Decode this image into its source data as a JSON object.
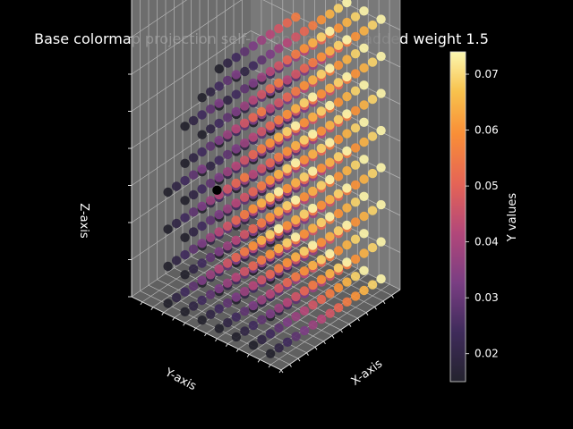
{
  "chart_data": {
    "type": "scatter",
    "projection": "3d",
    "title": "Base colormap projection self-looped method added weight 1.5",
    "xlabel": "X-axis",
    "ylabel": "Y-axis",
    "zlabel": "Z-axis",
    "colormap": "inferno",
    "colorbar": {
      "label": "Y values",
      "range": [
        0.015,
        0.074
      ],
      "ticks": [
        "0.02",
        "0.03",
        "0.04",
        "0.05",
        "0.06",
        "0.07"
      ]
    },
    "background": "#000000",
    "pane_color": "#808080",
    "grid": true,
    "grid_x": [
      0,
      1,
      2,
      3,
      4,
      5,
      6,
      7,
      8,
      9,
      10,
      11,
      12,
      13
    ],
    "grid_y": [
      0,
      1,
      2,
      3,
      4,
      5,
      6,
      7,
      8,
      9,
      10,
      11,
      12,
      13
    ],
    "grid_z": [
      0,
      1,
      2,
      3,
      4,
      5,
      6,
      7
    ],
    "value_rule": "color value = 0.015 + 0.0045 * x",
    "outlier": {
      "x": 0,
      "y": 6,
      "z": 4,
      "value": 0.0
    }
  }
}
